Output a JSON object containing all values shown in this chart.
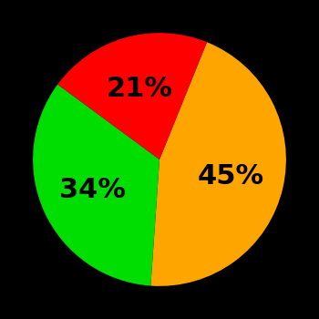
{
  "slices": [
    {
      "label": "45%",
      "value": 45,
      "color": "#FFA500"
    },
    {
      "label": "34%",
      "value": 34,
      "color": "#00DD00"
    },
    {
      "label": "21%",
      "value": 21,
      "color": "#FF0000"
    }
  ],
  "background_color": "#000000",
  "text_color": "#000000",
  "font_size": 22,
  "font_weight": "bold",
  "startangle": 68
}
